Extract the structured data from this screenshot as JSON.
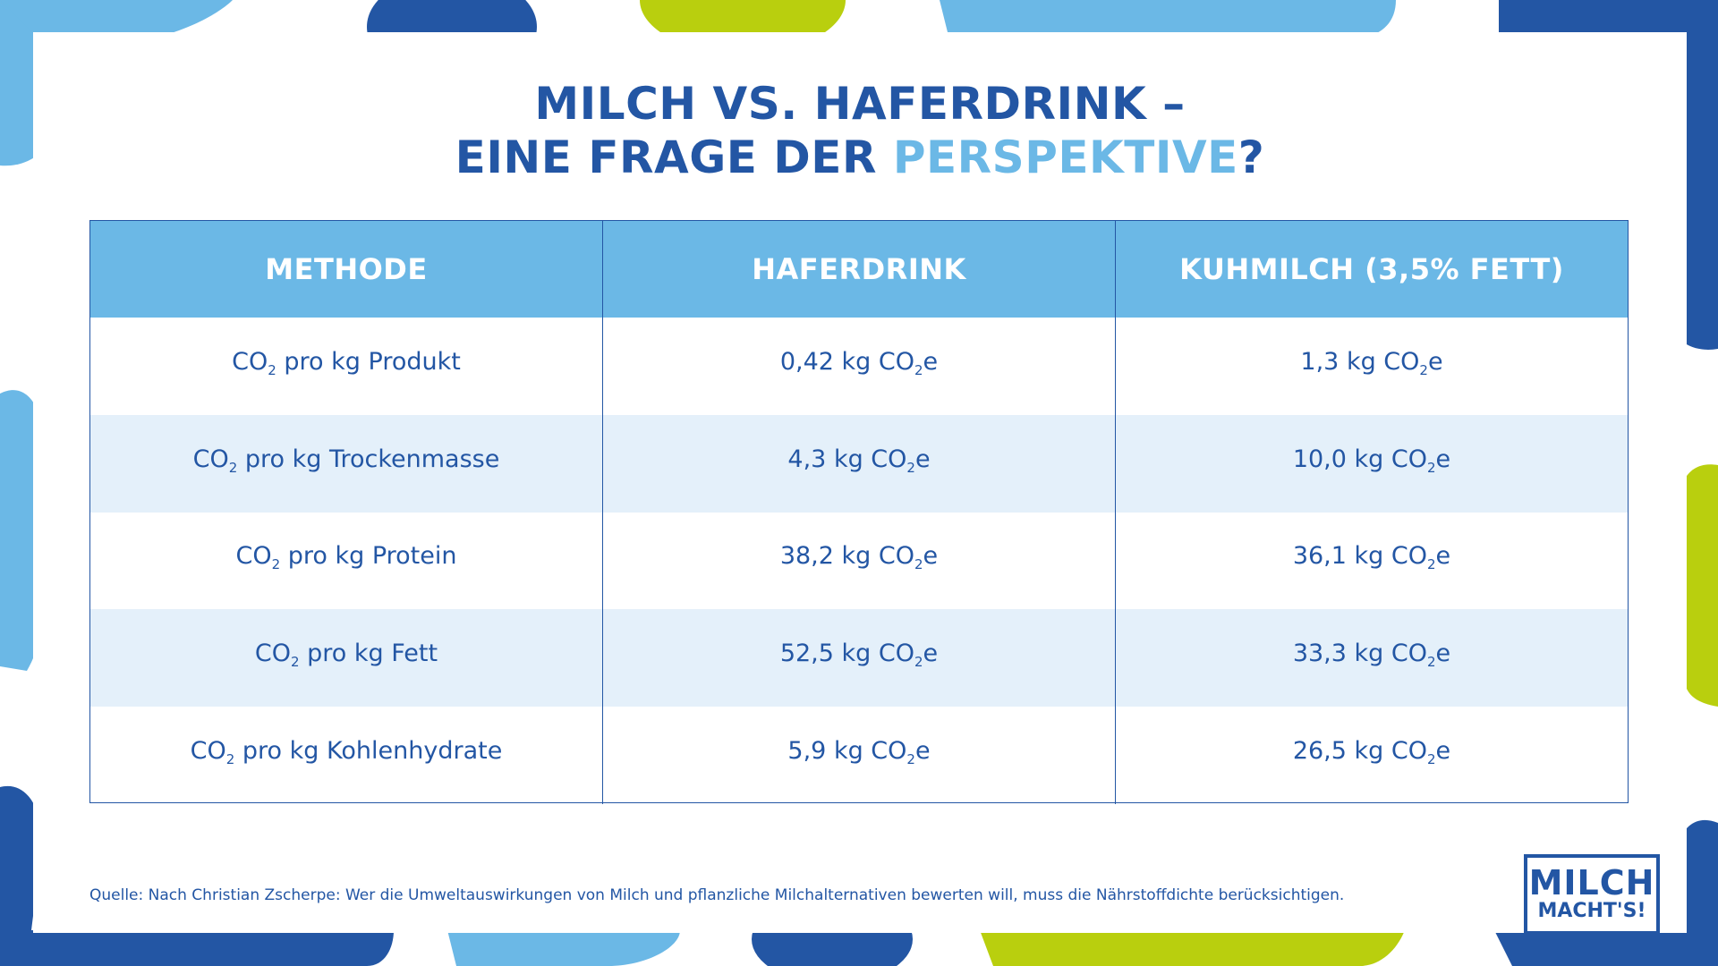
{
  "colors": {
    "dark_blue": "#2356a4",
    "light_blue": "#6bb8e6",
    "lime": "#b9cf0e",
    "row_alt": "#e4f0fa"
  },
  "title": {
    "line1": "MILCH VS. HAFERDRINK –",
    "line2_prefix": "EINE FRAGE DER ",
    "line2_accent": "PERSPEKTIVE",
    "line2_suffix": "?"
  },
  "table": {
    "headers": [
      "METHODE",
      "HAFERDRINK",
      "KUHMILCH (3,5% FETT)"
    ],
    "rows": [
      {
        "method_pre": "CO",
        "method_post": " pro kg Produkt",
        "oat_pre": "0,42 kg CO",
        "milk_pre": "1,3 kg CO"
      },
      {
        "method_pre": "CO",
        "method_post": " pro kg Trockenmasse",
        "oat_pre": "4,3 kg CO",
        "milk_pre": "10,0 kg CO"
      },
      {
        "method_pre": "CO",
        "method_post": " pro kg Protein",
        "oat_pre": "38,2 kg CO",
        "milk_pre": "36,1 kg CO"
      },
      {
        "method_pre": "CO",
        "method_post": " pro kg Fett",
        "oat_pre": "52,5 kg CO",
        "milk_pre": "33,3 kg CO"
      },
      {
        "method_pre": "CO",
        "method_post": " pro kg Kohlenhydrate",
        "oat_pre": "5,9 kg CO",
        "milk_pre": "26,5 kg CO"
      }
    ],
    "sub": "2",
    "suffix_e": "e"
  },
  "source": "Quelle: Nach Christian Zscherpe: Wer die Umweltauswirkungen von Milch und pflanzliche Milchalternativen bewerten will, muss die Nährstoffdichte berücksichtigen.",
  "logo": {
    "line1": "MILCH",
    "line2": "MACHT'S!"
  }
}
